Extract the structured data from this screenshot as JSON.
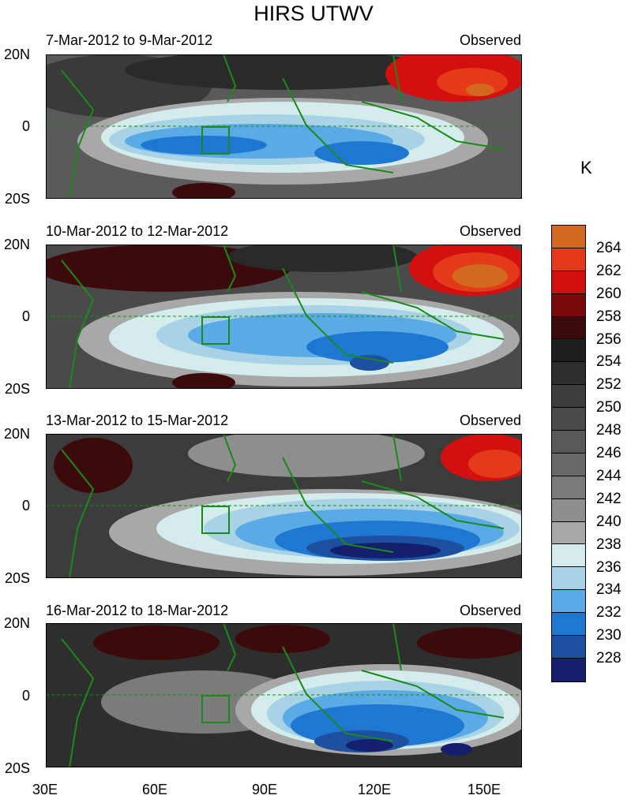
{
  "title": "HIRS UTWV",
  "colorbar": {
    "unit": "K",
    "levels": [
      "264",
      "262",
      "260",
      "258",
      "256",
      "254",
      "252",
      "250",
      "248",
      "246",
      "244",
      "242",
      "240",
      "238",
      "236",
      "234",
      "232",
      "230",
      "228"
    ],
    "colors": [
      "#d2691e",
      "#e53a1a",
      "#d21010",
      "#7a0a0a",
      "#3c0a0a",
      "#1e1e1e",
      "#2e2e2e",
      "#3c3c3c",
      "#4a4a4a",
      "#595959",
      "#696969",
      "#7b7b7b",
      "#8e8e8e",
      "#a8a8a8",
      "#d4ecec",
      "#a8d2e6",
      "#5aaae6",
      "#1e78d2",
      "#1e50a0",
      "#14206e"
    ]
  },
  "axes": {
    "lat_labels": [
      "20N",
      "0",
      "20S"
    ],
    "lon_labels": [
      "30E",
      "60E",
      "90E",
      "120E",
      "150E"
    ]
  },
  "panels": [
    {
      "date_range": "7-Mar-2012 to 9-Mar-2012",
      "tag": "Observed"
    },
    {
      "date_range": "10-Mar-2012 to 12-Mar-2012",
      "tag": "Observed"
    },
    {
      "date_range": "13-Mar-2012 to 15-Mar-2012",
      "tag": "Observed"
    },
    {
      "date_range": "16-Mar-2012 to 18-Mar-2012",
      "tag": "Observed"
    }
  ]
}
